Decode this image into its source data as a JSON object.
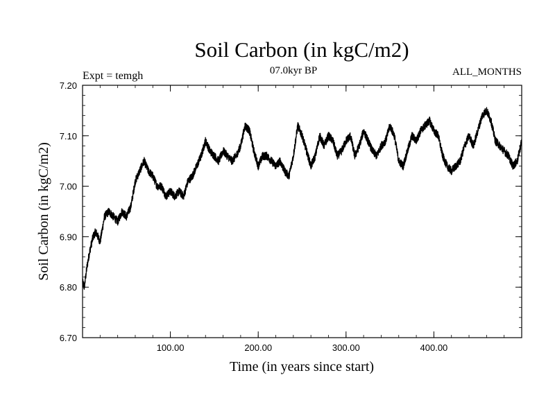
{
  "chart_data": {
    "type": "line",
    "title": "Soil Carbon (in kgC/m2)",
    "subtitle": "07.0kyr BP",
    "left_note": "Expt = temgh",
    "right_note": "ALL_MONTHS",
    "xlabel": "Time (in years since start)",
    "ylabel": "Soil Carbon (in kgC/m2)",
    "xlim": [
      0,
      500
    ],
    "ylim": [
      6.7,
      7.2
    ],
    "x_ticks": [
      100,
      200,
      300,
      400
    ],
    "x_tick_labels": [
      "100.00",
      "200.00",
      "300.00",
      "400.00"
    ],
    "y_ticks": [
      6.7,
      6.8,
      6.9,
      7.0,
      7.1,
      7.2
    ],
    "y_tick_labels": [
      "6.70",
      "6.80",
      "6.90",
      "7.00",
      "7.10",
      "7.20"
    ],
    "grid": false,
    "series": [
      {
        "name": "Soil Carbon",
        "color": "#000000",
        "noise_amplitude": 0.008,
        "x": [
          0,
          2,
          5,
          8,
          12,
          15,
          20,
          25,
          30,
          35,
          40,
          45,
          50,
          55,
          60,
          65,
          70,
          75,
          80,
          85,
          90,
          95,
          100,
          105,
          110,
          115,
          120,
          125,
          130,
          135,
          140,
          145,
          150,
          155,
          160,
          165,
          170,
          175,
          180,
          185,
          190,
          195,
          200,
          205,
          210,
          215,
          220,
          225,
          230,
          235,
          240,
          245,
          250,
          255,
          260,
          265,
          270,
          275,
          280,
          285,
          290,
          295,
          300,
          305,
          310,
          315,
          320,
          325,
          330,
          335,
          340,
          345,
          350,
          355,
          360,
          365,
          370,
          375,
          380,
          385,
          390,
          395,
          400,
          405,
          410,
          415,
          420,
          425,
          430,
          435,
          440,
          445,
          450,
          455,
          460,
          465,
          470,
          475,
          480,
          485,
          490,
          495,
          500
        ],
        "y": [
          6.81,
          6.8,
          6.84,
          6.87,
          6.9,
          6.91,
          6.89,
          6.94,
          6.95,
          6.94,
          6.93,
          6.95,
          6.94,
          6.96,
          7.01,
          7.03,
          7.05,
          7.03,
          7.02,
          7.0,
          7.0,
          6.98,
          6.99,
          6.98,
          6.99,
          6.98,
          7.01,
          7.02,
          7.04,
          7.06,
          7.09,
          7.07,
          7.06,
          7.05,
          7.07,
          7.06,
          7.05,
          7.06,
          7.08,
          7.12,
          7.11,
          7.07,
          7.04,
          7.06,
          7.06,
          7.05,
          7.04,
          7.05,
          7.03,
          7.02,
          7.06,
          7.12,
          7.1,
          7.07,
          7.04,
          7.06,
          7.1,
          7.08,
          7.1,
          7.09,
          7.06,
          7.07,
          7.09,
          7.1,
          7.06,
          7.08,
          7.11,
          7.09,
          7.07,
          7.06,
          7.08,
          7.09,
          7.12,
          7.1,
          7.05,
          7.04,
          7.07,
          7.1,
          7.09,
          7.11,
          7.12,
          7.13,
          7.11,
          7.1,
          7.06,
          7.04,
          7.03,
          7.04,
          7.05,
          7.08,
          7.1,
          7.08,
          7.11,
          7.14,
          7.15,
          7.13,
          7.09,
          7.08,
          7.07,
          7.06,
          7.04,
          7.05,
          7.09
        ]
      }
    ]
  }
}
